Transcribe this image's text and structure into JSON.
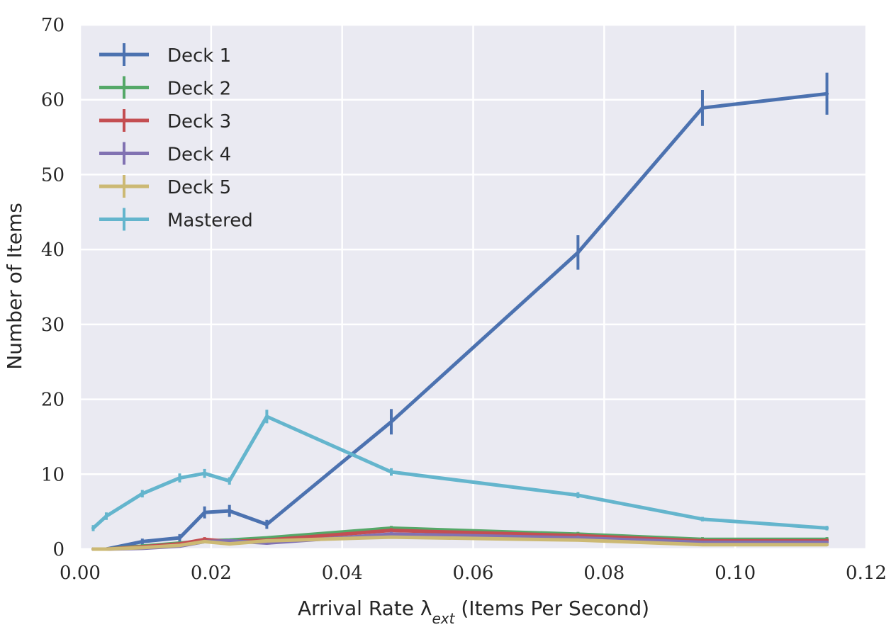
{
  "chart_data": {
    "type": "line",
    "title": "",
    "xlabel": "Arrival Rate λ",
    "xlabel_sub": "ext",
    "xlabel_suffix": " (Items Per Second)",
    "ylabel": "Number of Items",
    "xlim": [
      0.0,
      0.12
    ],
    "ylim": [
      0,
      70
    ],
    "xticks": [
      0.0,
      0.02,
      0.04,
      0.06,
      0.08,
      0.1,
      0.12
    ],
    "xtick_labels": [
      "0.00",
      "0.02",
      "0.04",
      "0.06",
      "0.08",
      "0.10",
      "0.12"
    ],
    "yticks": [
      0,
      10,
      20,
      30,
      40,
      50,
      60,
      70
    ],
    "ytick_labels": [
      "0",
      "10",
      "20",
      "30",
      "40",
      "50",
      "60",
      "70"
    ],
    "grid": true,
    "background": "#eaeaf2",
    "legend_position": "top-left",
    "series": [
      {
        "name": "Deck 1",
        "color": "#4c72b0",
        "x": [
          0.002,
          0.004,
          0.0095,
          0.0152,
          0.019,
          0.0228,
          0.0285,
          0.0475,
          0.076,
          0.095,
          0.114
        ],
        "y": [
          0.0,
          0.0,
          1.0,
          1.5,
          4.9,
          5.1,
          3.3,
          17.0,
          39.6,
          58.9,
          60.8
        ],
        "err": [
          0.1,
          0.1,
          0.4,
          0.5,
          0.8,
          0.8,
          0.6,
          1.7,
          2.3,
          2.4,
          2.8
        ]
      },
      {
        "name": "Deck 2",
        "color": "#55a868",
        "x": [
          0.002,
          0.004,
          0.0095,
          0.0152,
          0.019,
          0.0228,
          0.0285,
          0.0475,
          0.076,
          0.095,
          0.114
        ],
        "y": [
          0.0,
          0.0,
          0.4,
          0.8,
          1.1,
          1.2,
          1.5,
          2.8,
          2.0,
          1.3,
          1.3
        ],
        "err": [
          0.05,
          0.05,
          0.2,
          0.2,
          0.2,
          0.2,
          0.2,
          0.3,
          0.3,
          0.3,
          0.3
        ]
      },
      {
        "name": "Deck 3",
        "color": "#c44e52",
        "x": [
          0.002,
          0.004,
          0.0095,
          0.0152,
          0.019,
          0.0228,
          0.0285,
          0.0475,
          0.076,
          0.095,
          0.114
        ],
        "y": [
          0.0,
          0.0,
          0.3,
          0.7,
          1.3,
          1.0,
          1.2,
          2.5,
          1.8,
          1.1,
          1.1
        ],
        "err": [
          0.05,
          0.05,
          0.2,
          0.2,
          0.3,
          0.2,
          0.2,
          0.3,
          0.3,
          0.3,
          0.3
        ]
      },
      {
        "name": "Deck 4",
        "color": "#8172b2",
        "x": [
          0.002,
          0.004,
          0.0095,
          0.0152,
          0.019,
          0.0228,
          0.0285,
          0.0475,
          0.076,
          0.095,
          0.114
        ],
        "y": [
          0.0,
          0.0,
          0.1,
          0.4,
          1.0,
          1.1,
          0.8,
          2.0,
          1.5,
          0.9,
          0.9
        ],
        "err": [
          0.05,
          0.05,
          0.1,
          0.2,
          0.2,
          0.2,
          0.2,
          0.3,
          0.3,
          0.2,
          0.2
        ]
      },
      {
        "name": "Deck 5",
        "color": "#ccb974",
        "x": [
          0.002,
          0.004,
          0.0095,
          0.0152,
          0.019,
          0.0228,
          0.0285,
          0.0475,
          0.076,
          0.095,
          0.114
        ],
        "y": [
          0.0,
          0.0,
          0.2,
          0.5,
          1.0,
          0.7,
          1.1,
          1.6,
          1.2,
          0.6,
          0.6
        ],
        "err": [
          0.05,
          0.05,
          0.1,
          0.2,
          0.2,
          0.2,
          0.2,
          0.2,
          0.2,
          0.2,
          0.2
        ]
      },
      {
        "name": "Mastered",
        "color": "#64b5cd",
        "x": [
          0.002,
          0.004,
          0.0095,
          0.0152,
          0.019,
          0.0228,
          0.0285,
          0.0475,
          0.076,
          0.095,
          0.114
        ],
        "y": [
          2.8,
          4.4,
          7.4,
          9.5,
          10.1,
          9.1,
          17.7,
          10.3,
          7.2,
          4.0,
          2.8
        ],
        "err": [
          0.4,
          0.5,
          0.5,
          0.6,
          0.6,
          0.5,
          0.9,
          0.5,
          0.4,
          0.3,
          0.3
        ]
      }
    ]
  }
}
